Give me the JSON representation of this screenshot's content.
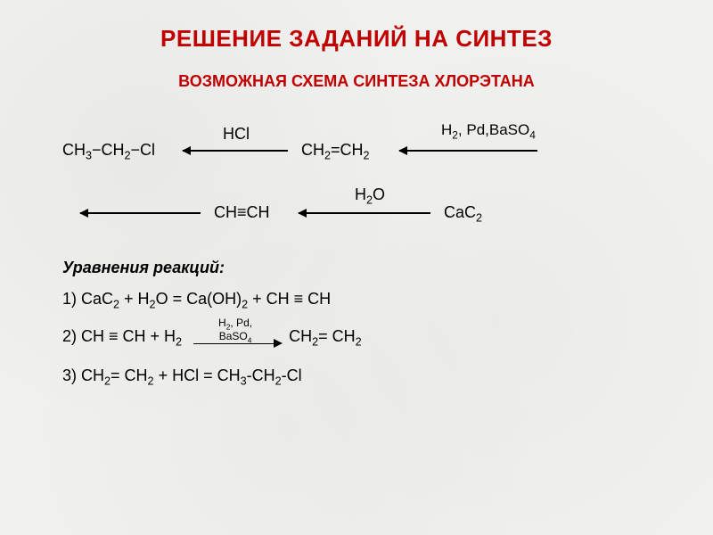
{
  "title": {
    "text": "РЕШЕНИЕ ЗАДАНИЙ НА СИНТЕЗ",
    "color": "#c00000",
    "font_size": 26
  },
  "subtitle": {
    "text": "ВОЗМОЖНАЯ СХЕМА СИНТЕЗА ХЛОРЭТАНА",
    "color": "#c00000",
    "font_size": 18
  },
  "scheme": {
    "font_size": 18,
    "nodes": {
      "n1": "CH₃−CH₂−Cl",
      "n2": "CH₂=CH₂",
      "n3": "CH≡CH",
      "n4": "CaC₂"
    },
    "arrow_labels": {
      "a1": "HCl",
      "a2": "H₂, Pd,BaSO₄",
      "a3": "H₂O"
    }
  },
  "equations": {
    "title": "Уравнения реакций:",
    "font_size": 18,
    "lines": {
      "eq1": "1) CaC₂  +  H₂O  =  Ca(OH)₂  +  CH ≡ CH",
      "eq2_left": "2) CH ≡ CH + H₂",
      "eq2_right": "CH₂= CH₂",
      "eq2_label_top": "H₂, Pd,",
      "eq2_label_bot": "BaSO₄",
      "eq3": "3) CH₂= CH₂  +  HCl      =  CH₃-CH₂-Cl"
    }
  },
  "colors": {
    "text": "#000000",
    "line": "#000000",
    "background": "#f0f0ee"
  }
}
